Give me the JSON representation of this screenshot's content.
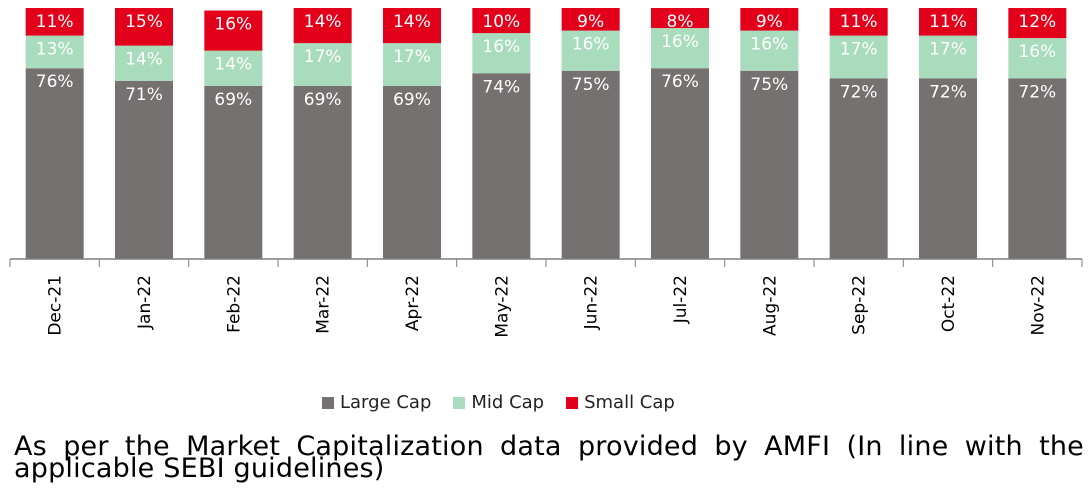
{
  "chart_data": {
    "type": "bar",
    "stacked": true,
    "categories": [
      "Dec-21",
      "Jan-22",
      "Feb-22",
      "Mar-22",
      "Apr-22",
      "May-22",
      "Jun-22",
      "Jul-22",
      "Aug-22",
      "Sep-22",
      "Oct-22",
      "Nov-22"
    ],
    "series": [
      {
        "name": "Large Cap",
        "color": "#767171",
        "values": [
          76,
          71,
          69,
          69,
          69,
          74,
          75,
          76,
          75,
          72,
          72,
          72
        ]
      },
      {
        "name": "Mid Cap",
        "color": "#a9dbbd",
        "values": [
          13,
          14,
          14,
          17,
          17,
          16,
          16,
          16,
          16,
          17,
          17,
          16
        ]
      },
      {
        "name": "Small Cap",
        "color": "#e2001a",
        "values": [
          11,
          15,
          16,
          14,
          14,
          10,
          9,
          8,
          9,
          11,
          11,
          12
        ]
      }
    ],
    "unit": "%",
    "ylim": [
      0,
      100
    ],
    "grid": false,
    "legend_position": "bottom"
  },
  "footnote": "As per the Market Capitalization data provided by AMFI (In line with the applicable SEBI guidelines)"
}
